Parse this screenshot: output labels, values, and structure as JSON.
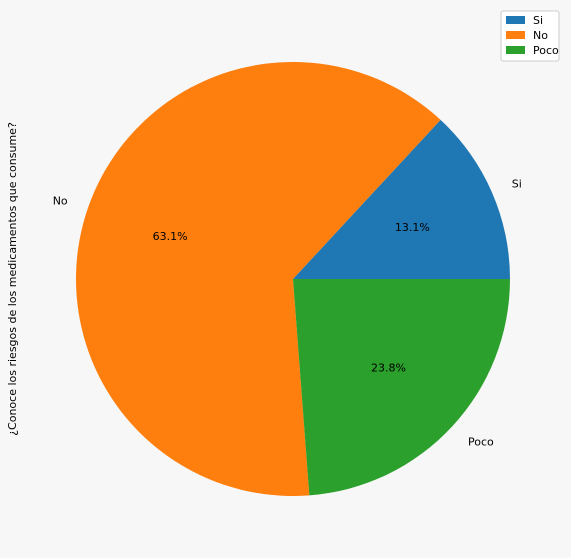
{
  "chart_data": {
    "type": "pie",
    "ylabel": "¿Conoce los riesgos de los medicamentos que consume?",
    "categories": [
      "Si",
      "No",
      "Poco"
    ],
    "values": [
      13.1,
      63.1,
      23.8
    ],
    "percent_labels": [
      "13.1%",
      "63.1%",
      "23.8%"
    ],
    "colors": [
      "#1f77b4",
      "#ff7f0e",
      "#2ca02c"
    ],
    "start_angle_deg": 0,
    "direction": "counterclockwise",
    "legend": {
      "position": "top-right",
      "entries": [
        "Si",
        "No",
        "Poco"
      ]
    }
  }
}
